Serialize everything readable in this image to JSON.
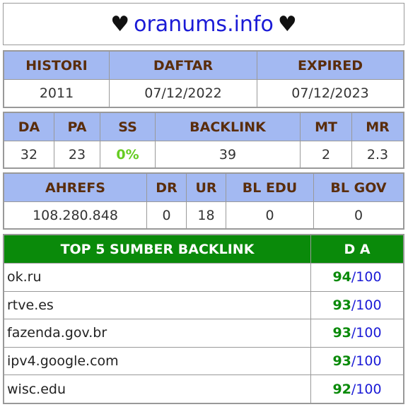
{
  "header": {
    "heart_left": "♥",
    "site": "oranums.info",
    "heart_right": "♥"
  },
  "table1": {
    "headers": [
      "HISTORI",
      "DAFTAR",
      "EXPIRED"
    ],
    "values": [
      "2011",
      "07/12/2022",
      "07/12/2023"
    ]
  },
  "table2": {
    "headers": [
      "DA",
      "PA",
      "SS",
      "BACKLINK",
      "MT",
      "MR"
    ],
    "values": [
      "32",
      "23",
      "0%",
      "39",
      "2",
      "2.3"
    ]
  },
  "table3": {
    "headers": [
      "AHREFS",
      "DR",
      "UR",
      "BL EDU",
      "BL GOV"
    ],
    "values": [
      "108.280.848",
      "0",
      "18",
      "0",
      "0"
    ]
  },
  "top_backlinks": {
    "header_source": "TOP 5 SUMBER BACKLINK",
    "header_da": "D A",
    "rows": [
      {
        "domain": "ok.ru",
        "da": "94",
        "max": "/100"
      },
      {
        "domain": "rtve.es",
        "da": "93",
        "max": "/100"
      },
      {
        "domain": "fazenda.gov.br",
        "da": "93",
        "max": "/100"
      },
      {
        "domain": "ipv4.google.com",
        "da": "93",
        "max": "/100"
      },
      {
        "domain": "wisc.edu",
        "da": "92",
        "max": "/100"
      }
    ]
  },
  "colors": {
    "header_bg": "#a3b9f2",
    "header_text": "#5a2d0c",
    "green_header": "#0a8a0a",
    "link_blue": "#1a1ad6",
    "ss_green": "#66cc22"
  }
}
